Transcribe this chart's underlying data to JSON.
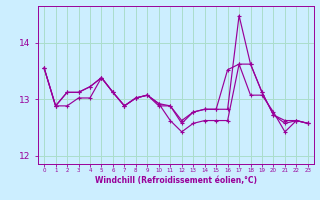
{
  "xlabel": "Windchill (Refroidissement éolien,°C)",
  "bg_color": "#cceeff",
  "line_color": "#990099",
  "grid_color": "#aaddcc",
  "x_values": [
    0,
    1,
    2,
    3,
    4,
    5,
    6,
    7,
    8,
    9,
    10,
    11,
    12,
    13,
    14,
    15,
    16,
    17,
    18,
    19,
    20,
    21,
    22,
    23
  ],
  "series1": [
    13.55,
    12.88,
    13.12,
    13.12,
    13.22,
    13.38,
    13.12,
    12.88,
    13.02,
    13.07,
    12.92,
    12.88,
    12.62,
    12.77,
    12.82,
    12.82,
    12.82,
    14.48,
    13.62,
    13.12,
    12.72,
    12.62,
    12.62,
    12.57
  ],
  "series2": [
    13.55,
    12.88,
    12.88,
    13.02,
    13.02,
    13.38,
    13.12,
    12.88,
    13.02,
    13.07,
    12.88,
    12.88,
    12.57,
    12.77,
    12.82,
    12.82,
    13.52,
    13.62,
    13.62,
    13.12,
    12.72,
    12.57,
    12.62,
    12.57
  ],
  "series3": [
    13.55,
    12.88,
    13.12,
    13.12,
    13.22,
    13.38,
    13.12,
    12.88,
    13.02,
    13.07,
    12.92,
    12.62,
    12.42,
    12.57,
    12.62,
    12.62,
    12.62,
    13.62,
    13.07,
    13.07,
    12.77,
    12.42,
    12.62,
    12.57
  ],
  "ylim": [
    11.85,
    14.65
  ],
  "yticks": [
    12,
    13,
    14
  ],
  "xlim": [
    -0.5,
    23.5
  ]
}
